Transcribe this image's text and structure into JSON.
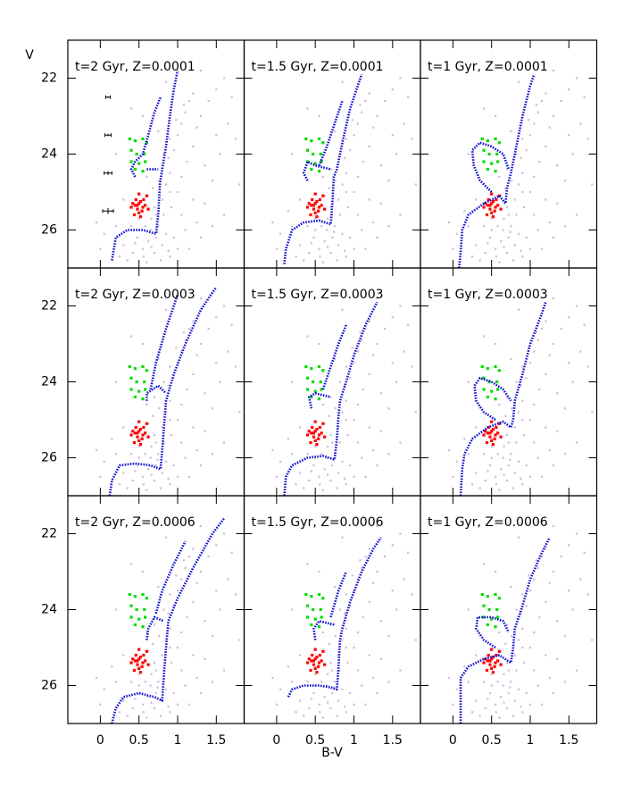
{
  "chart_data": {
    "type": "scatter",
    "xlabel": "B-V",
    "ylabel": "V",
    "xlim": [
      -0.42,
      1.86
    ],
    "ylim": [
      27,
      21
    ],
    "xticks": [
      0,
      0.5,
      1,
      1.5
    ],
    "yticks": [
      22,
      24,
      26
    ],
    "grid": false,
    "series": [
      {
        "color": "#cbbcd9",
        "x": [
          0.55,
          0.62,
          0.7,
          0.48,
          0.8,
          0.9,
          0.58,
          0.66,
          0.75,
          0.85,
          0.42,
          0.35,
          0.6,
          0.78,
          1.0,
          0.95,
          0.7,
          0.62,
          0.68,
          0.72,
          0.8,
          0.85,
          0.9,
          0.88,
          0.95,
          1.0,
          1.05,
          1.1,
          1.15,
          1.2,
          0.92,
          1.0,
          1.05,
          1.12,
          1.2,
          1.25,
          1.3,
          1.4,
          1.5,
          1.6,
          1.7,
          1.65,
          1.55,
          1.45,
          1.35,
          1.25,
          1.1,
          1.15,
          1.3,
          1.45,
          0.3,
          0.25,
          0.4,
          0.5,
          0.2,
          0.15,
          0.3,
          0.05,
          0.0,
          -0.05,
          0.65,
          0.72,
          0.5,
          0.82,
          0.76,
          0.7,
          0.82,
          0.9,
          0.98,
          1.08,
          1.35,
          1.5,
          1.75,
          1.8,
          1.6,
          0.6,
          0.55,
          0.4,
          0.2,
          0.9,
          1.05,
          1.2,
          0.85,
          1.3,
          0.75,
          0.66,
          0.45,
          0.88,
          0.56,
          0.74
        ],
        "y": [
          26.5,
          26.3,
          26.6,
          26.2,
          26.4,
          26.7,
          25.9,
          25.7,
          25.9,
          26.1,
          26.6,
          26.8,
          26.85,
          26.8,
          26.5,
          26.2,
          25.4,
          25.1,
          24.9,
          25.6,
          25.2,
          24.8,
          24.5,
          24.1,
          23.9,
          23.5,
          23.2,
          22.9,
          22.6,
          22.4,
          25.4,
          25.0,
          24.6,
          24.2,
          23.8,
          23.3,
          23.0,
          22.6,
          22.3,
          22.0,
          22.5,
          23.2,
          24.0,
          24.7,
          25.3,
          25.8,
          26.0,
          26.5,
          26.2,
          25.9,
          26.4,
          26.7,
          25.9,
          25.7,
          25.9,
          25.5,
          25.2,
          26.1,
          26.5,
          25.8,
          26.0,
          26.2,
          26.0,
          25.6,
          24.7,
          24.4,
          24.0,
          23.6,
          23.1,
          22.7,
          24.3,
          23.5,
          23.6,
          24.8,
          25.6,
          24.6,
          23.0,
          22.8,
          24.0,
          25.0,
          25.6,
          25.2,
          22.1,
          21.8,
          23.4,
          26.45,
          26.35,
          26.55,
          26.7,
          26.05
        ]
      },
      {
        "color": "#ff0000",
        "x": [
          0.45,
          0.5,
          0.55,
          0.48,
          0.52,
          0.42,
          0.58,
          0.5,
          0.46,
          0.54,
          0.6,
          0.4,
          0.5,
          0.56,
          0.44,
          0.62,
          0.52,
          0.48
        ],
        "y": [
          25.35,
          25.3,
          25.4,
          25.45,
          25.25,
          25.3,
          25.35,
          25.55,
          25.2,
          25.5,
          25.1,
          25.4,
          25.05,
          25.2,
          25.6,
          25.45,
          25.65,
          25.35
        ]
      },
      {
        "color": "#00dd00",
        "x": [
          0.38,
          0.45,
          0.55,
          0.6,
          0.4,
          0.47,
          0.57,
          0.4,
          0.5,
          0.58,
          0.45,
          0.55
        ],
        "y": [
          23.6,
          23.65,
          23.6,
          23.7,
          23.9,
          24.0,
          24.0,
          24.2,
          24.25,
          24.2,
          24.4,
          24.45
        ]
      }
    ],
    "errorbars": {
      "color": "#000000",
      "x": [
        0.1,
        0.1,
        0.1,
        0.1
      ],
      "y": [
        22.5,
        23.5,
        24.5,
        25.5
      ],
      "xerr": [
        0.03,
        0.04,
        0.05,
        0.07
      ],
      "yerr": [
        0.02,
        0.03,
        0.05,
        0.08
      ]
    },
    "panels": [
      {
        "title": "t=2 Gyr, Z=0.0001",
        "color": "#1010d0",
        "x": [
          0.15,
          0.2,
          0.35,
          0.55,
          0.72,
          0.75,
          0.77,
          0.8,
          0.85,
          0.9,
          0.95,
          1.0,
          null,
          0.45,
          0.4,
          0.45,
          0.55,
          0.62,
          0.7,
          0.78,
          null,
          0.6,
          0.75
        ],
        "y": [
          26.8,
          26.2,
          26.0,
          26.0,
          26.1,
          25.6,
          24.8,
          24.4,
          23.8,
          23.0,
          22.3,
          21.8,
          null,
          24.6,
          24.4,
          24.2,
          24.0,
          23.5,
          22.9,
          22.5,
          null,
          24.4,
          24.4
        ]
      },
      {
        "title": "t=1.5 Gyr, Z=0.0001",
        "color": "#1010d0",
        "x": [
          0.1,
          0.12,
          0.2,
          0.35,
          0.55,
          0.7,
          0.72,
          0.74,
          0.78,
          0.85,
          0.95,
          1.05,
          1.1,
          null,
          0.4,
          0.35,
          0.4,
          0.5,
          0.7,
          null,
          0.55,
          0.65,
          0.75,
          0.85
        ],
        "y": [
          26.9,
          26.5,
          26.0,
          25.8,
          25.75,
          25.85,
          25.3,
          24.6,
          24.4,
          23.7,
          22.8,
          22.2,
          21.9,
          null,
          24.7,
          24.5,
          24.2,
          24.3,
          24.4,
          null,
          24.3,
          23.8,
          23.2,
          22.6
        ]
      },
      {
        "title": "t=1 Gyr, Z=0.0001",
        "color": "#1010d0",
        "x": [
          0.08,
          0.1,
          0.12,
          0.2,
          0.4,
          0.6,
          0.68,
          0.7,
          0.75,
          0.8,
          0.9,
          1.0,
          1.05,
          null,
          0.5,
          0.35,
          0.27,
          0.25,
          0.35,
          0.5,
          0.65,
          0.72
        ],
        "y": [
          27.0,
          26.6,
          26.0,
          25.6,
          25.3,
          25.1,
          25.3,
          24.9,
          24.5,
          24.0,
          23.0,
          22.2,
          21.9,
          null,
          25.0,
          24.7,
          24.3,
          23.9,
          23.7,
          23.8,
          24.0,
          24.4
        ]
      },
      {
        "title": "t=2 Gyr, Z=0.0003",
        "color": "#1010d0",
        "x": [
          0.12,
          0.15,
          0.25,
          0.45,
          0.65,
          0.78,
          0.8,
          0.83,
          0.85,
          0.95,
          1.1,
          1.3,
          1.5,
          null,
          0.6,
          0.6,
          0.75,
          0.85,
          null,
          0.65,
          0.72,
          0.85,
          1.0
        ],
        "y": [
          27.0,
          26.6,
          26.2,
          26.15,
          26.2,
          26.3,
          25.8,
          25.0,
          24.5,
          23.8,
          23.0,
          22.1,
          21.5,
          null,
          24.5,
          24.3,
          24.1,
          24.3,
          null,
          24.2,
          23.5,
          22.6,
          21.7
        ]
      },
      {
        "title": "t=1.5 Gyr, Z=0.0003",
        "color": "#1010d0",
        "x": [
          0.1,
          0.12,
          0.2,
          0.4,
          0.6,
          0.75,
          0.78,
          0.8,
          0.82,
          0.9,
          1.0,
          1.15,
          1.3,
          null,
          0.45,
          0.42,
          0.5,
          0.7,
          null,
          0.6,
          0.7,
          0.8,
          0.9
        ],
        "y": [
          27.0,
          26.5,
          26.2,
          26.0,
          25.95,
          26.05,
          25.5,
          24.9,
          24.5,
          24.0,
          23.3,
          22.5,
          21.9,
          null,
          24.7,
          24.4,
          24.3,
          24.4,
          null,
          24.2,
          23.6,
          23.0,
          22.5
        ]
      },
      {
        "title": "t=1 Gyr, Z=0.0003",
        "color": "#1010d0",
        "x": [
          0.1,
          0.12,
          0.15,
          0.25,
          0.45,
          0.65,
          0.75,
          0.78,
          0.8,
          0.9,
          1.0,
          1.15,
          1.2,
          null,
          0.55,
          0.4,
          0.3,
          0.28,
          0.35,
          0.5,
          0.65,
          0.75
        ],
        "y": [
          27.0,
          26.3,
          25.9,
          25.5,
          25.2,
          25.05,
          25.2,
          25.0,
          24.5,
          23.8,
          23.0,
          22.2,
          21.9,
          null,
          25.0,
          24.8,
          24.5,
          24.1,
          23.9,
          24.0,
          24.2,
          24.5
        ]
      },
      {
        "title": "t=2 Gyr, Z=0.0006",
        "color": "#1010d0",
        "x": [
          0.15,
          0.2,
          0.3,
          0.5,
          0.7,
          0.8,
          0.82,
          0.85,
          0.88,
          1.0,
          1.2,
          1.45,
          1.6,
          null,
          0.6,
          0.62,
          0.7,
          0.82,
          null,
          0.72,
          0.8,
          0.95,
          1.1
        ],
        "y": [
          27.0,
          26.6,
          26.3,
          26.2,
          26.3,
          26.4,
          25.8,
          25.0,
          24.3,
          23.7,
          22.9,
          22.0,
          21.6,
          null,
          24.8,
          24.5,
          24.2,
          24.3,
          null,
          24.1,
          23.5,
          22.8,
          22.2
        ]
      },
      {
        "title": "t=1.5 Gyr, Z=0.0006",
        "color": "#1010d0",
        "x": [
          0.15,
          0.2,
          0.35,
          0.55,
          0.7,
          0.78,
          0.8,
          0.82,
          0.85,
          0.95,
          1.1,
          1.25,
          1.35,
          null,
          0.5,
          0.48,
          0.55,
          0.75,
          null,
          0.7,
          0.8,
          0.9
        ],
        "y": [
          26.3,
          26.1,
          26.0,
          26.0,
          26.05,
          26.1,
          25.5,
          24.8,
          24.5,
          23.8,
          23.0,
          22.4,
          22.1,
          null,
          24.8,
          24.5,
          24.3,
          24.4,
          null,
          24.2,
          23.5,
          23.0
        ]
      },
      {
        "title": "t=1 Gyr, Z=0.0006",
        "color": "#1010d0",
        "x": [
          0.1,
          0.1,
          0.1,
          0.2,
          0.4,
          0.6,
          0.75,
          0.78,
          0.8,
          0.9,
          1.0,
          1.15,
          1.25,
          null,
          0.55,
          0.4,
          0.3,
          0.32,
          0.5,
          0.65,
          0.72
        ],
        "y": [
          27.0,
          26.4,
          25.8,
          25.5,
          25.3,
          25.2,
          25.4,
          25.0,
          24.5,
          23.9,
          23.2,
          22.5,
          22.1,
          null,
          25.0,
          24.8,
          24.5,
          24.2,
          24.2,
          24.3,
          24.6
        ]
      }
    ]
  }
}
